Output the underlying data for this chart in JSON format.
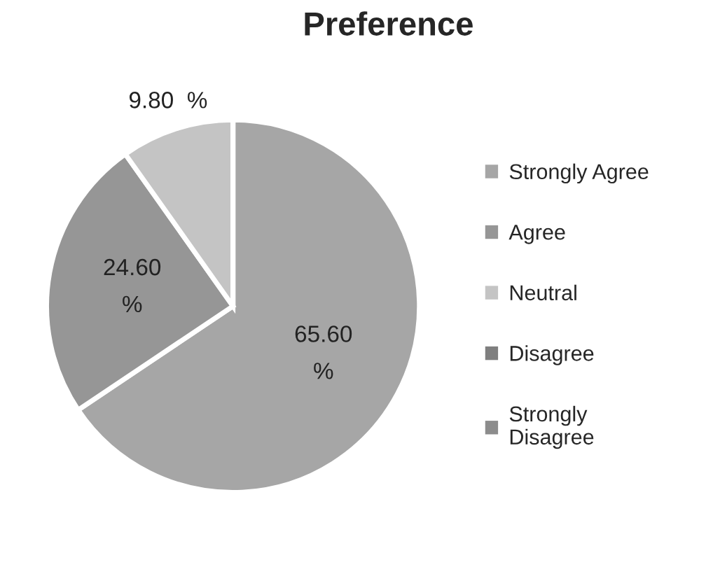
{
  "chart_data": {
    "type": "pie",
    "title": "Preference",
    "categories": [
      "Strongly Agree",
      "Agree",
      "Neutral",
      "Disagree",
      "Strongly\nDisagree"
    ],
    "values": [
      65.6,
      24.6,
      9.8,
      0,
      0
    ],
    "value_labels": [
      "65.60\n%",
      "24.60\n%",
      "9.80  %",
      null,
      null
    ],
    "colors": [
      "#a6a6a6",
      "#969696",
      "#c4c4c4",
      "#7f7f7f",
      "#8c8c8c"
    ],
    "legend": "right"
  }
}
